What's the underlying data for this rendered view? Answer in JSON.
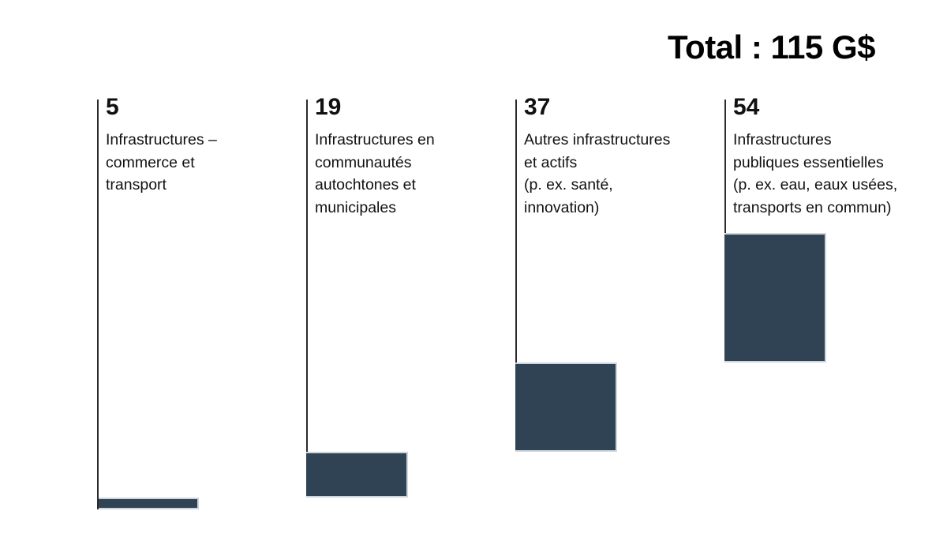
{
  "title": "Total : 115 G$",
  "chart_data": {
    "type": "bar",
    "subtype": "waterfall",
    "title": "Total : 115 G$",
    "total": 115,
    "unit": "G$",
    "categories": [
      "Infrastructures –\ncommerce et\ntransport",
      "Infrastructures en\ncommunautés\nautochtones et\nmunicipales",
      "Autres infrastructures\net actifs\n(p. ex. santé,\ninnovation)",
      "Infrastructures\npubliques essentielles\n(p. ex. eau, eaux usées,\ntransports en commun)"
    ],
    "values": [
      5,
      19,
      37,
      54
    ],
    "cumulative_start": [
      0,
      5,
      24,
      61
    ],
    "ylim": [
      0,
      115
    ],
    "grid": false,
    "legend": "none",
    "bar_color": "#2f4354",
    "bar_border_color": "#ccd5dc",
    "connector_line_color": "#2b2b2b",
    "text_color": "#111111"
  },
  "columns": [
    {
      "value": "5",
      "label": "Infrastructures –\ncommerce et\ntransport"
    },
    {
      "value": "19",
      "label": "Infrastructures en\ncommunautés\nautochtones et\nmunicipales"
    },
    {
      "value": "37",
      "label": "Autres infrastructures\net actifs\n(p. ex. santé,\ninnovation)"
    },
    {
      "value": "54",
      "label": "Infrastructures\npubliques essentielles\n(p. ex. eau, eaux usées,\ntransports en commun)"
    }
  ]
}
